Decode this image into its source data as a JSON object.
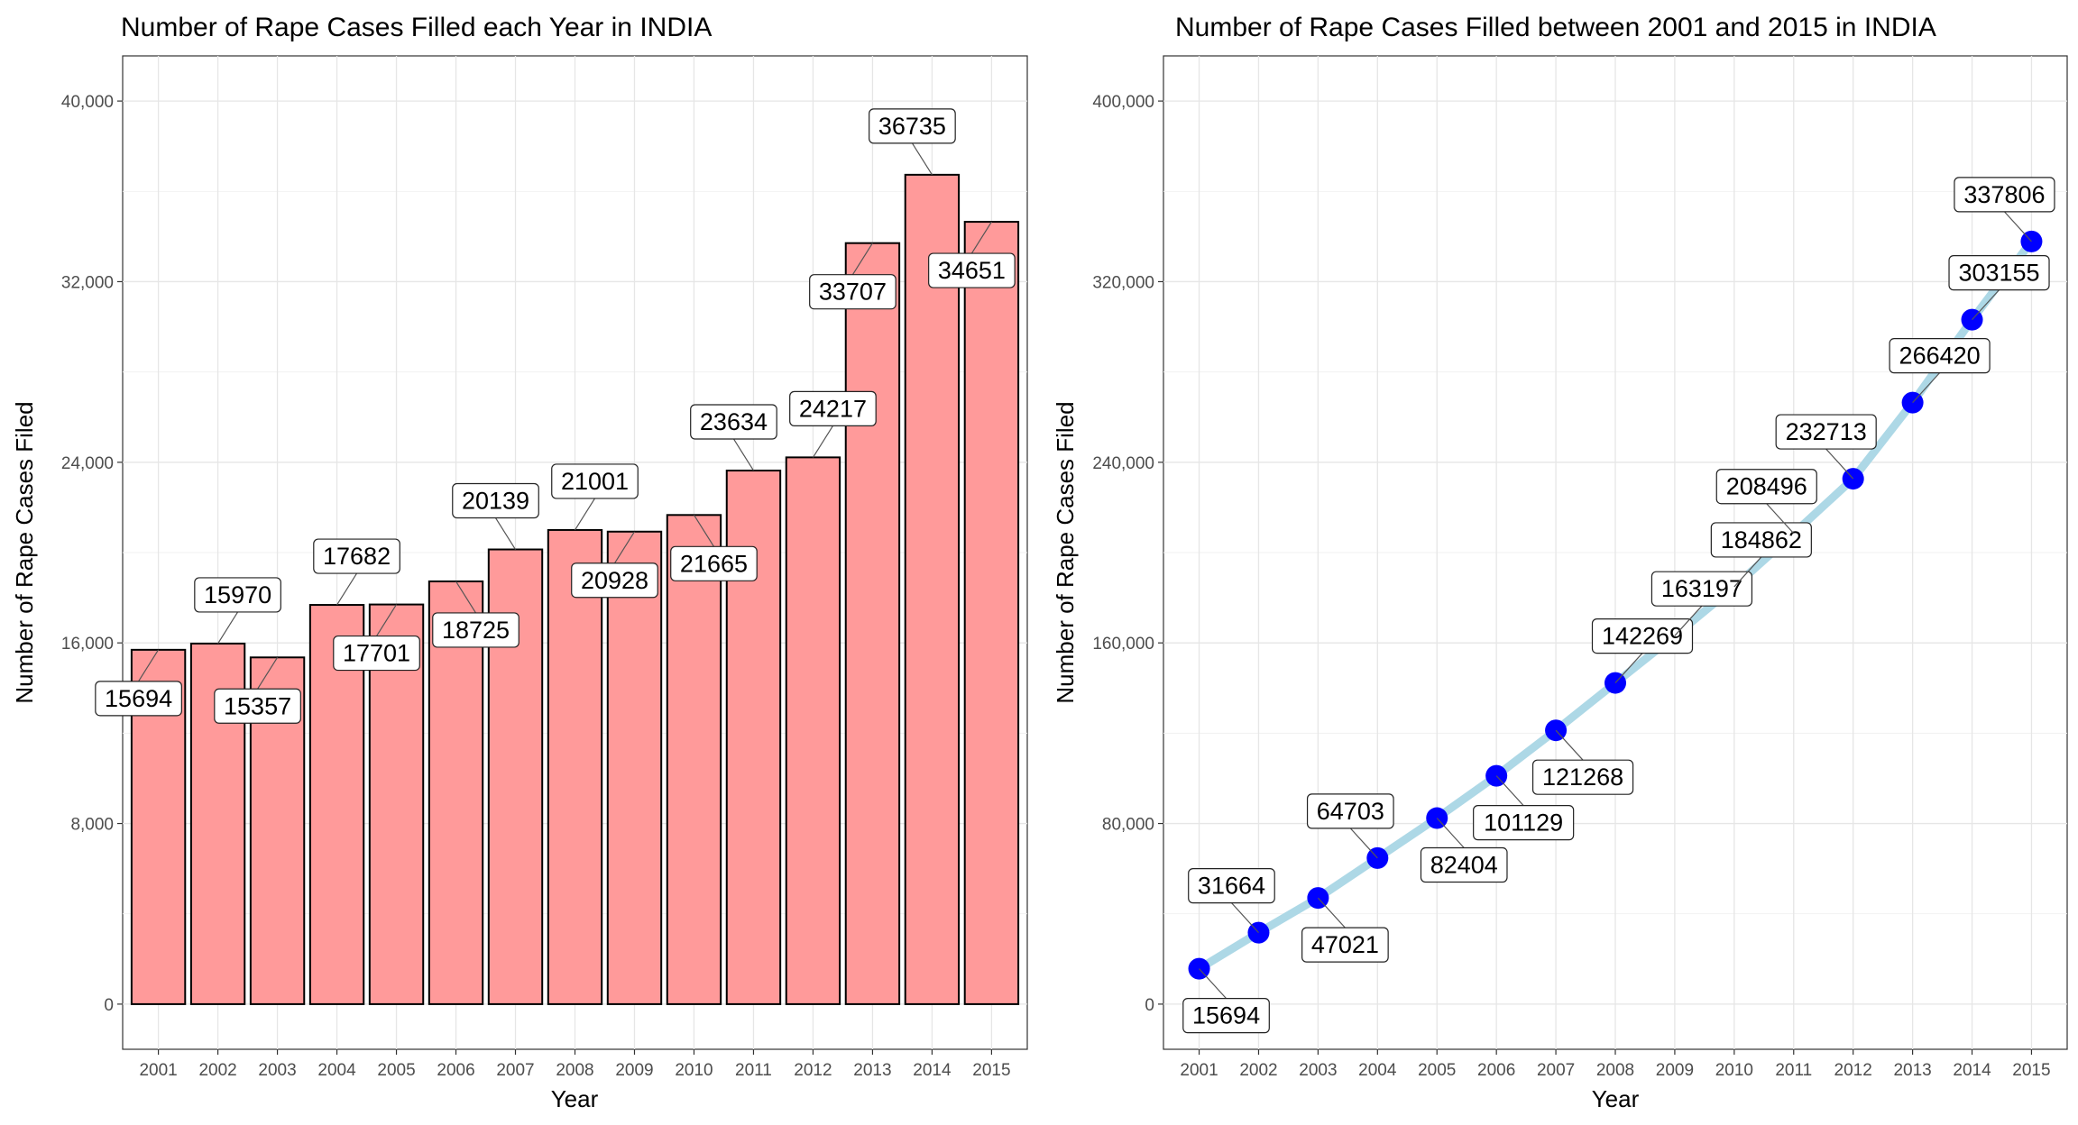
{
  "chart_data": [
    {
      "type": "bar",
      "title": "Number of Rape Cases Filled each Year in INDIA",
      "xlabel": "Year",
      "ylabel": "Number of Rape Cases Filed",
      "categories": [
        "2001",
        "2002",
        "2003",
        "2004",
        "2005",
        "2006",
        "2007",
        "2008",
        "2009",
        "2010",
        "2011",
        "2012",
        "2013",
        "2014",
        "2015"
      ],
      "values": [
        15694,
        15970,
        15357,
        17682,
        17701,
        18725,
        20139,
        21001,
        20928,
        21665,
        23634,
        24217,
        33707,
        36735,
        34651
      ],
      "labels": [
        "15694",
        "15970",
        "15357",
        "17682",
        "17701",
        "18725",
        "20139",
        "21001",
        "20928",
        "21665",
        "23634",
        "24217",
        "33707",
        "36735",
        "34651"
      ],
      "ylim": [
        -2000,
        42000
      ],
      "yticks": [
        0,
        8000,
        16000,
        24000,
        32000,
        40000
      ],
      "ytick_labels": [
        "0",
        "8,000",
        "16,000",
        "24,000",
        "32,000",
        "40,000"
      ],
      "grid": true,
      "bar_color": "#ff9a9a",
      "bar_border": "#000000"
    },
    {
      "type": "line",
      "title": "Number of Rape Cases Filled between 2001 and 2015 in INDIA",
      "xlabel": "Year",
      "ylabel": "Number of Rape Cases Filed",
      "categories": [
        "2001",
        "2002",
        "2003",
        "2004",
        "2005",
        "2006",
        "2007",
        "2008",
        "2009",
        "2010",
        "2011",
        "2012",
        "2013",
        "2014",
        "2015"
      ],
      "values": [
        15694,
        31664,
        47021,
        64703,
        82404,
        101129,
        121268,
        142269,
        163197,
        184862,
        208496,
        232713,
        266420,
        303155,
        337806
      ],
      "labels": [
        "15694",
        "31664",
        "47021",
        "64703",
        "82404",
        "101129",
        "121268",
        "142269",
        "163197",
        "184862",
        "208496",
        "232713",
        "266420",
        "303155",
        "337806"
      ],
      "ylim": [
        -20000,
        420000
      ],
      "yticks": [
        0,
        80000,
        160000,
        240000,
        320000,
        400000
      ],
      "ytick_labels": [
        "0",
        "80,000",
        "160,000",
        "240,000",
        "320,000",
        "400,000"
      ],
      "grid": true,
      "line_color": "#add8e6",
      "point_color": "#0000ff"
    }
  ]
}
